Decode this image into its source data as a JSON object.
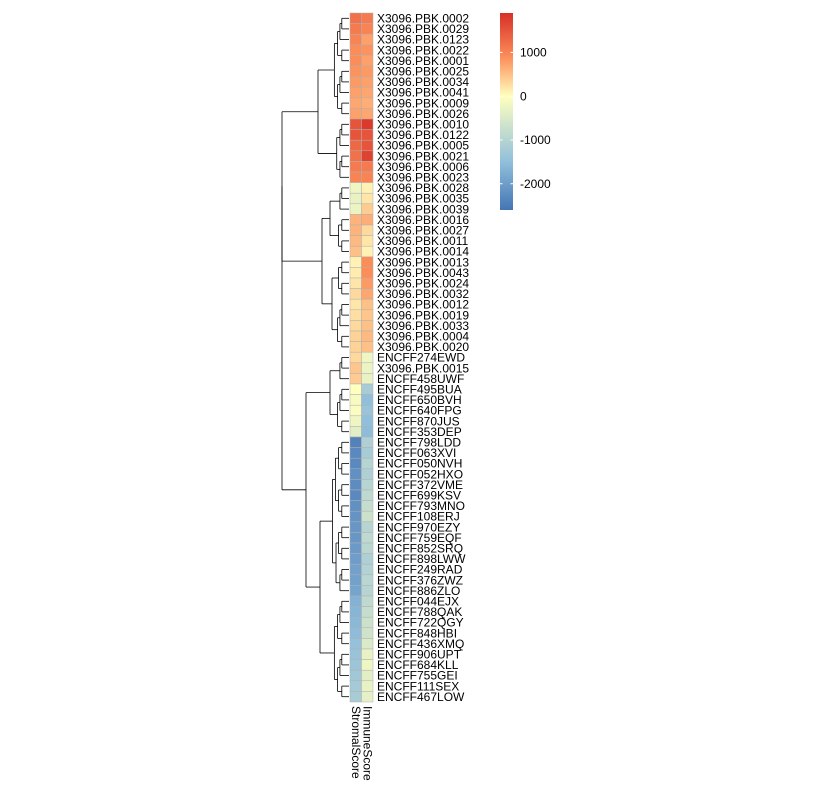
{
  "chart_data": {
    "type": "heatmap",
    "title": "",
    "columns": [
      "StromalScore",
      "ImmuneScore"
    ],
    "rows": [
      {
        "label": "X3096.PBK.0002",
        "values": [
          1200,
          1100
        ]
      },
      {
        "label": "X3096.PBK.0029",
        "values": [
          1100,
          1000
        ]
      },
      {
        "label": "X3096.PBK.0123",
        "values": [
          1000,
          750
        ]
      },
      {
        "label": "X3096.PBK.0022",
        "values": [
          900,
          850
        ]
      },
      {
        "label": "X3096.PBK.0001",
        "values": [
          900,
          750
        ]
      },
      {
        "label": "X3096.PBK.0025",
        "values": [
          850,
          800
        ]
      },
      {
        "label": "X3096.PBK.0034",
        "values": [
          800,
          750
        ]
      },
      {
        "label": "X3096.PBK.0041",
        "values": [
          750,
          700
        ]
      },
      {
        "label": "X3096.PBK.0009",
        "values": [
          700,
          650
        ]
      },
      {
        "label": "X3096.PBK.0026",
        "values": [
          750,
          700
        ]
      },
      {
        "label": "X3096.PBK.0010",
        "values": [
          1500,
          1800
        ]
      },
      {
        "label": "X3096.PBK.0122",
        "values": [
          1500,
          1500
        ]
      },
      {
        "label": "X3096.PBK.0005",
        "values": [
          1300,
          1500
        ]
      },
      {
        "label": "X3096.PBK.0021",
        "values": [
          1200,
          1700
        ]
      },
      {
        "label": "X3096.PBK.0006",
        "values": [
          1100,
          1100
        ]
      },
      {
        "label": "X3096.PBK.0023",
        "values": [
          1000,
          1000
        ]
      },
      {
        "label": "X3096.PBK.0028",
        "values": [
          -200,
          100
        ]
      },
      {
        "label": "X3096.PBK.0035",
        "values": [
          -300,
          200
        ]
      },
      {
        "label": "X3096.PBK.0039",
        "values": [
          -250,
          400
        ]
      },
      {
        "label": "X3096.PBK.0016",
        "values": [
          600,
          650
        ]
      },
      {
        "label": "X3096.PBK.0027",
        "values": [
          600,
          300
        ]
      },
      {
        "label": "X3096.PBK.0011",
        "values": [
          550,
          200
        ]
      },
      {
        "label": "X3096.PBK.0014",
        "values": [
          500,
          100
        ]
      },
      {
        "label": "X3096.PBK.0013",
        "values": [
          100,
          900
        ]
      },
      {
        "label": "X3096.PBK.0043",
        "values": [
          150,
          900
        ]
      },
      {
        "label": "X3096.PBK.0024",
        "values": [
          200,
          800
        ]
      },
      {
        "label": "X3096.PBK.0032",
        "values": [
          300,
          700
        ]
      },
      {
        "label": "X3096.PBK.0012",
        "values": [
          200,
          500
        ]
      },
      {
        "label": "X3096.PBK.0019",
        "values": [
          250,
          450
        ]
      },
      {
        "label": "X3096.PBK.0033",
        "values": [
          300,
          500
        ]
      },
      {
        "label": "X3096.PBK.0004",
        "values": [
          350,
          550
        ]
      },
      {
        "label": "X3096.PBK.0020",
        "values": [
          350,
          500
        ]
      },
      {
        "label": "ENCFF274EWD",
        "values": [
          300,
          -200
        ]
      },
      {
        "label": "X3096.PBK.0015",
        "values": [
          450,
          -250
        ]
      },
      {
        "label": "ENCFF458UWF",
        "values": [
          400,
          -300
        ]
      },
      {
        "label": "ENCFF495BUA",
        "values": [
          0,
          -1200
        ]
      },
      {
        "label": "ENCFF650BVH",
        "values": [
          -100,
          -1500
        ]
      },
      {
        "label": "ENCFF640FPG",
        "values": [
          -50,
          -1400
        ]
      },
      {
        "label": "ENCFF870JUS",
        "values": [
          -200,
          -1500
        ]
      },
      {
        "label": "ENCFF353DEP",
        "values": [
          -400,
          -1550
        ]
      },
      {
        "label": "ENCFF798LDD",
        "values": [
          -2400,
          -1100
        ]
      },
      {
        "label": "ENCFF063XVI",
        "values": [
          -2300,
          -1200
        ]
      },
      {
        "label": "ENCFF050NVH",
        "values": [
          -2300,
          -1000
        ]
      },
      {
        "label": "ENCFF052HXO",
        "values": [
          -2200,
          -1100
        ]
      },
      {
        "label": "ENCFF372VME",
        "values": [
          -2250,
          -1000
        ]
      },
      {
        "label": "ENCFF699KSV",
        "values": [
          -2300,
          -900
        ]
      },
      {
        "label": "ENCFF793MNO",
        "values": [
          -2200,
          -800
        ]
      },
      {
        "label": "ENCFF108ERJ",
        "values": [
          -2150,
          -700
        ]
      },
      {
        "label": "ENCFF970EZY",
        "values": [
          -2100,
          -1000
        ]
      },
      {
        "label": "ENCFF759EQF",
        "values": [
          -2100,
          -900
        ]
      },
      {
        "label": "ENCFF852SRQ",
        "values": [
          -2050,
          -950
        ]
      },
      {
        "label": "ENCFF898LWW",
        "values": [
          -2000,
          -1100
        ]
      },
      {
        "label": "ENCFF249RAD",
        "values": [
          -1950,
          -1050
        ]
      },
      {
        "label": "ENCFF376ZWZ",
        "values": [
          -1950,
          -950
        ]
      },
      {
        "label": "ENCFF886ZLO",
        "values": [
          -1900,
          -1000
        ]
      },
      {
        "label": "ENCFF044EJX",
        "values": [
          -1700,
          -900
        ]
      },
      {
        "label": "ENCFF788QAK",
        "values": [
          -1650,
          -800
        ]
      },
      {
        "label": "ENCFF722QGY",
        "values": [
          -1600,
          -700
        ]
      },
      {
        "label": "ENCFF848HBI",
        "values": [
          -1550,
          -650
        ]
      },
      {
        "label": "ENCFF436XMQ",
        "values": [
          -1450,
          -500
        ]
      },
      {
        "label": "ENCFF906UPT",
        "values": [
          -1400,
          -300
        ]
      },
      {
        "label": "ENCFF684KLL",
        "values": [
          -1350,
          -200
        ]
      },
      {
        "label": "ENCFF755GEI",
        "values": [
          -1300,
          -400
        ]
      },
      {
        "label": "ENCFF111SEX",
        "values": [
          -1250,
          -300
        ]
      },
      {
        "label": "ENCFF467LOW",
        "values": [
          -1200,
          -350
        ]
      }
    ],
    "legend": {
      "placement": "right",
      "range": [
        -2600,
        1900
      ],
      "ticks": [
        1000,
        0,
        -1000,
        -2000
      ],
      "tick_labels": [
        "1000",
        "0",
        "-1000",
        "-2000"
      ]
    },
    "colors": {
      "low": "#4575b4",
      "mid_low": "#91bfdb",
      "mid": "#ffffbf",
      "mid_high": "#fc8d59",
      "high": "#d73027"
    },
    "row_dendrogram": true
  }
}
